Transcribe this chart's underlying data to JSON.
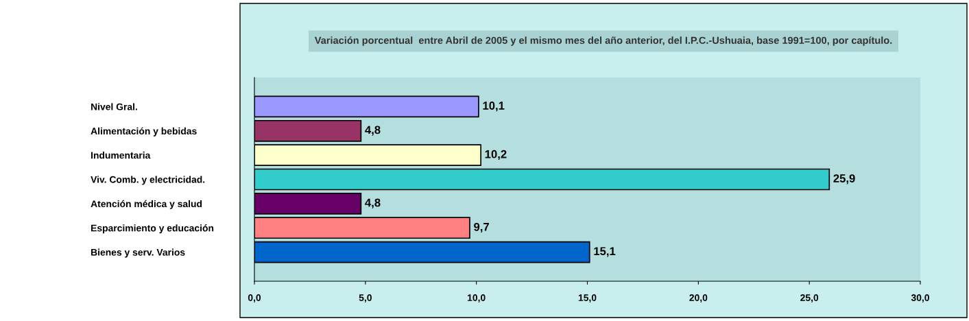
{
  "chart_data": {
    "type": "bar",
    "orientation": "horizontal",
    "title": "Variación porcentual  entre Abril de 2005 y el mismo mes del año anterior, del I.P.C.-Ushuaia, base 1991=100, por capítulo.",
    "categories": [
      "Nivel Gral.",
      "Alimentación y bebidas",
      "Indumentaria",
      "Viv. Comb. y electricidad.",
      "Atención médica y salud",
      "Esparcimiento y educación",
      "Bienes y serv. Varios"
    ],
    "values": [
      10.1,
      4.8,
      10.2,
      25.9,
      4.8,
      9.7,
      15.1
    ],
    "value_labels": [
      "10,1",
      "4,8",
      "10,2",
      "25,9",
      "4,8",
      "9,7",
      "15,1"
    ],
    "colors": [
      "#9999ff",
      "#993366",
      "#ffffcc",
      "#33cccc",
      "#660066",
      "#ff8080",
      "#0066cc"
    ],
    "xlim": [
      0,
      30
    ],
    "xticks": [
      {
        "value": 0,
        "label": "0,0"
      },
      {
        "value": 5,
        "label": "5,0"
      },
      {
        "value": 10,
        "label": "10,0"
      },
      {
        "value": 15,
        "label": "15,0"
      },
      {
        "value": 20,
        "label": "20,0"
      },
      {
        "value": 25,
        "label": "25,0"
      },
      {
        "value": 30,
        "label": "30,0"
      }
    ],
    "grid": false,
    "legend": false
  }
}
